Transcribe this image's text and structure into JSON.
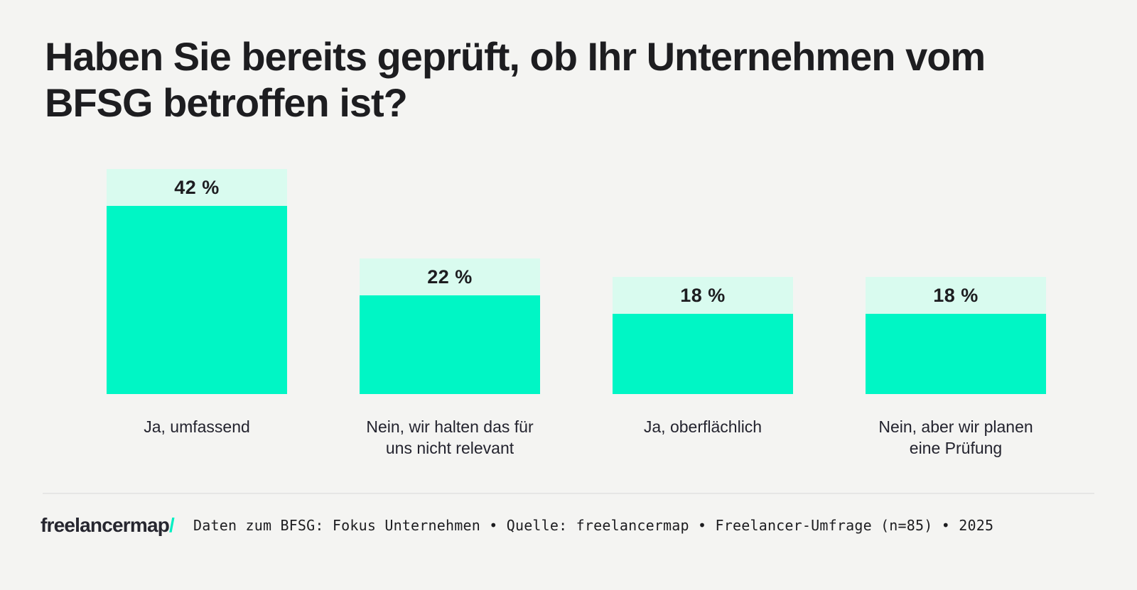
{
  "colors": {
    "background": "#f4f4f2",
    "bar_fill": "#00f6c5",
    "bar_cap": "#d9fbef",
    "ink": "#1d1d20",
    "category_label": "#23232e",
    "divider": "#e6e6e5",
    "logo": "#26262f",
    "accent": "#00efc3"
  },
  "chart_data": {
    "type": "bar",
    "orientation": "vertical",
    "title": "Haben Sie bereits geprüft, ob Ihr Unternehmen vom BFSG betroffen ist?",
    "categories": [
      "Ja, umfassend",
      "Nein, wir halten das für uns nicht relevant",
      "Ja, oberflächlich",
      "Nein, aber wir planen eine Prüfung"
    ],
    "values": [
      42,
      22,
      18,
      18
    ],
    "unit": "%",
    "value_labels": [
      "42 %",
      "22 %",
      "18 %",
      "18 %"
    ],
    "xlabel": "",
    "ylabel": "",
    "ylim": [
      0,
      45
    ],
    "grid": false,
    "legend": false,
    "bar_color": "#00f6c5",
    "value_cap_color": "#d9fbef"
  },
  "footer": {
    "logo_text": "freelancermap",
    "logo_slash": "/",
    "source_text": "Daten zum BFSG: Fokus Unternehmen • Quelle: freelancermap • Freelancer-Umfrage (n=85) • 2025"
  }
}
